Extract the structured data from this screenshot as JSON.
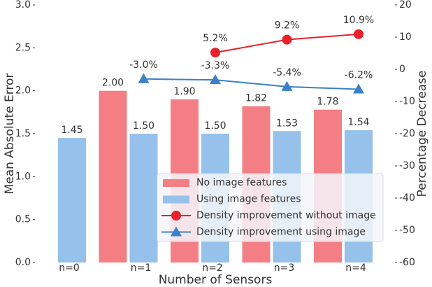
{
  "chart_data": {
    "type": "bar",
    "xlabel": "Number of Sensors",
    "ylabel": "Mean Absolute Error",
    "y2label": "Percentage Decrease",
    "categories": [
      "n=0",
      "n=1",
      "n=2",
      "n=3",
      "n=4"
    ],
    "ylim": [
      0,
      3
    ],
    "yticks": [
      {
        "value": 0,
        "label": "0.0"
      },
      0.5,
      {
        "value": 1,
        "label": "1.0"
      },
      1.5,
      {
        "value": 2,
        "label": "2.0"
      },
      2.5,
      {
        "value": 3,
        "label": "3.0"
      }
    ],
    "y2lim": [
      -60,
      20
    ],
    "y2ticks": [
      -60,
      -50,
      -40,
      -30,
      -20,
      -10,
      0,
      10,
      20
    ],
    "legend": "lower right",
    "series": [
      {
        "name": "No image features",
        "type": "bar",
        "color": "#f37f84",
        "values": [
          null,
          2.0,
          1.9,
          1.82,
          1.78
        ],
        "value_labels": [
          null,
          "2.00",
          "1.90",
          "1.82",
          "1.78"
        ]
      },
      {
        "name": "Using image features",
        "type": "bar",
        "color": "#95c1ea",
        "values": [
          1.45,
          1.5,
          1.5,
          1.53,
          1.54
        ],
        "value_labels": [
          "1.45",
          "1.50",
          "1.50",
          "1.53",
          "1.54"
        ]
      },
      {
        "name": "Density improvement without image",
        "type": "line",
        "axis": "y2",
        "marker": "circle",
        "color": "#e8212b",
        "values": [
          null,
          null,
          5.2,
          9.2,
          10.9
        ],
        "value_labels": [
          null,
          null,
          "5.2%",
          "9.2%",
          "10.9%"
        ]
      },
      {
        "name": "Density improvement using image",
        "type": "line",
        "axis": "y2",
        "marker": "triangle",
        "color": "#3b80c8",
        "values": [
          null,
          -3.0,
          -3.3,
          -5.4,
          -6.2
        ],
        "value_labels": [
          null,
          "-3.0%",
          "-3.3%",
          "-5.4%",
          "-6.2%"
        ]
      }
    ]
  }
}
